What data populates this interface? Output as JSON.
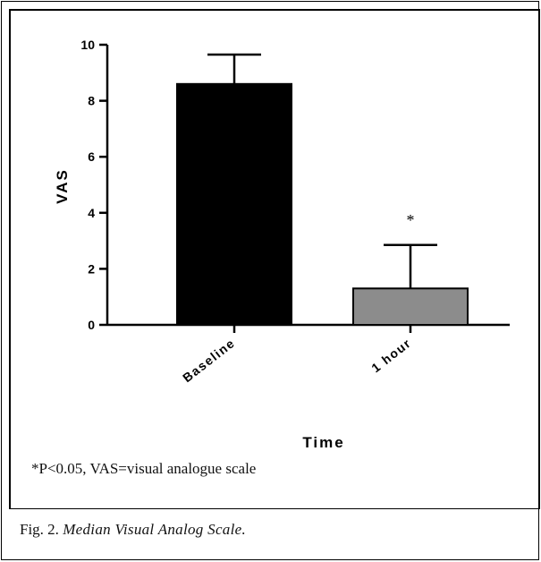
{
  "chart_data": {
    "type": "bar",
    "categories": [
      "Baseline",
      "1 hour"
    ],
    "values": [
      8.6,
      1.3
    ],
    "error_upper": [
      9.65,
      2.85
    ],
    "significance": [
      "",
      "*"
    ],
    "xlabel": "Time",
    "ylabel": "VAS",
    "ylim": [
      0,
      10
    ],
    "yticks": [
      0,
      2,
      4,
      6,
      8,
      10
    ],
    "grid": false,
    "colors": [
      "#000000",
      "#8c8c8c"
    ]
  },
  "footnote": "*P<0.05, VAS=visual analogue scale",
  "caption": {
    "prefix": "Fig. 2.",
    "title": "Median Visual Analog Scale."
  }
}
